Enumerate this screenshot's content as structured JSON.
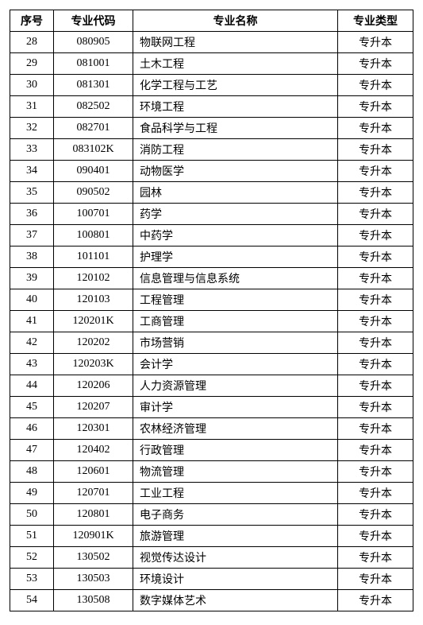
{
  "table": {
    "headers": {
      "seq": "序号",
      "code": "专业代码",
      "name": "专业名称",
      "type": "专业类型"
    },
    "rows": [
      {
        "seq": "28",
        "code": "080905",
        "name": "物联网工程",
        "type": "专升本"
      },
      {
        "seq": "29",
        "code": "081001",
        "name": "土木工程",
        "type": "专升本"
      },
      {
        "seq": "30",
        "code": "081301",
        "name": "化学工程与工艺",
        "type": "专升本"
      },
      {
        "seq": "31",
        "code": "082502",
        "name": "环境工程",
        "type": "专升本"
      },
      {
        "seq": "32",
        "code": "082701",
        "name": "食品科学与工程",
        "type": "专升本"
      },
      {
        "seq": "33",
        "code": "083102K",
        "name": "消防工程",
        "type": "专升本"
      },
      {
        "seq": "34",
        "code": "090401",
        "name": "动物医学",
        "type": "专升本"
      },
      {
        "seq": "35",
        "code": "090502",
        "name": "园林",
        "type": "专升本"
      },
      {
        "seq": "36",
        "code": "100701",
        "name": "药学",
        "type": "专升本"
      },
      {
        "seq": "37",
        "code": "100801",
        "name": "中药学",
        "type": "专升本"
      },
      {
        "seq": "38",
        "code": "101101",
        "name": "护理学",
        "type": "专升本"
      },
      {
        "seq": "39",
        "code": "120102",
        "name": "信息管理与信息系统",
        "type": "专升本"
      },
      {
        "seq": "40",
        "code": "120103",
        "name": "工程管理",
        "type": "专升本"
      },
      {
        "seq": "41",
        "code": "120201K",
        "name": "工商管理",
        "type": "专升本"
      },
      {
        "seq": "42",
        "code": "120202",
        "name": "市场营销",
        "type": "专升本"
      },
      {
        "seq": "43",
        "code": "120203K",
        "name": "会计学",
        "type": "专升本"
      },
      {
        "seq": "44",
        "code": "120206",
        "name": "人力资源管理",
        "type": "专升本"
      },
      {
        "seq": "45",
        "code": "120207",
        "name": "审计学",
        "type": "专升本"
      },
      {
        "seq": "46",
        "code": "120301",
        "name": "农林经济管理",
        "type": "专升本"
      },
      {
        "seq": "47",
        "code": "120402",
        "name": "行政管理",
        "type": "专升本"
      },
      {
        "seq": "48",
        "code": "120601",
        "name": "物流管理",
        "type": "专升本"
      },
      {
        "seq": "49",
        "code": "120701",
        "name": "工业工程",
        "type": "专升本"
      },
      {
        "seq": "50",
        "code": "120801",
        "name": "电子商务",
        "type": "专升本"
      },
      {
        "seq": "51",
        "code": "120901K",
        "name": "旅游管理",
        "type": "专升本"
      },
      {
        "seq": "52",
        "code": "130502",
        "name": "视觉传达设计",
        "type": "专升本"
      },
      {
        "seq": "53",
        "code": "130503",
        "name": "环境设计",
        "type": "专升本"
      },
      {
        "seq": "54",
        "code": "130508",
        "name": "数字媒体艺术",
        "type": "专升本"
      }
    ]
  }
}
